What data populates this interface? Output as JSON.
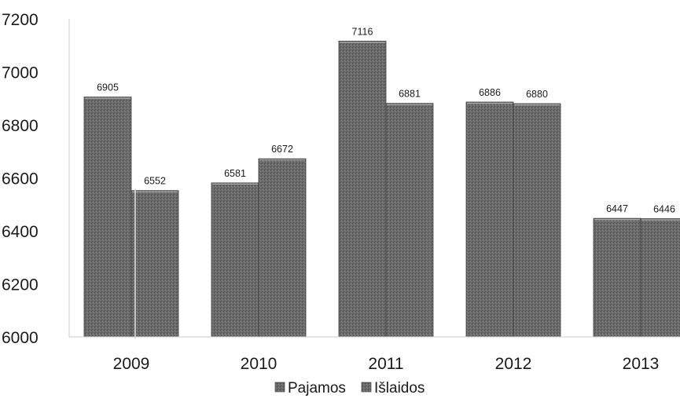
{
  "chart_data": {
    "type": "bar",
    "title": "",
    "xlabel": "",
    "ylabel": "",
    "categories": [
      "2009",
      "2010",
      "2011",
      "2012",
      "2013"
    ],
    "series": [
      {
        "name": "Pajamos",
        "values": [
          6905,
          6581,
          7116,
          6886,
          6447
        ],
        "color": "#6a6a6a"
      },
      {
        "name": "Išlaidos",
        "values": [
          6552,
          6672,
          6881,
          6880,
          6446
        ],
        "color": "#5e5e5e"
      }
    ],
    "ylim": [
      6000,
      7200
    ],
    "yticks": [
      "6000",
      "6200",
      "6400",
      "6600",
      "6800",
      "7000",
      "7200"
    ],
    "data_labels": [
      [
        "6905",
        "6581",
        "7116",
        "6886",
        "6447"
      ],
      [
        "6552",
        "6672",
        "6881",
        "6880",
        "6446"
      ]
    ],
    "grid": false,
    "legend_position": "bottom"
  }
}
